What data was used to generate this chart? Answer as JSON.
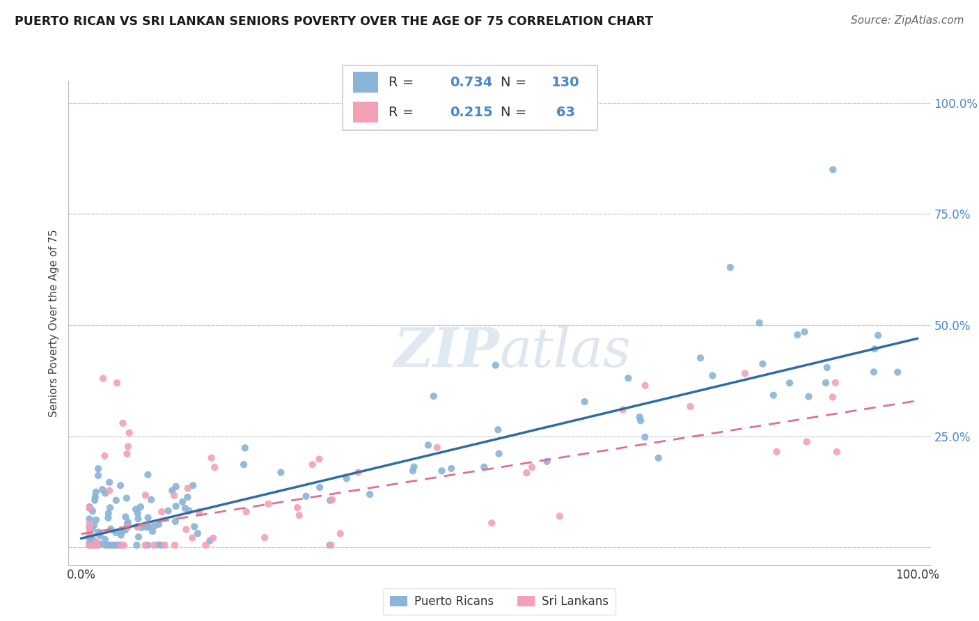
{
  "title": "PUERTO RICAN VS SRI LANKAN SENIORS POVERTY OVER THE AGE OF 75 CORRELATION CHART",
  "source": "Source: ZipAtlas.com",
  "ylabel": "Seniors Poverty Over the Age of 75",
  "blue_R": 0.734,
  "blue_N": 130,
  "pink_R": 0.215,
  "pink_N": 63,
  "blue_color": "#8ab4d8",
  "pink_color": "#f4a0b5",
  "blue_line_color": "#2e6da4",
  "pink_line_color": "#e07090",
  "legend_label_blue": "Puerto Ricans",
  "legend_label_pink": "Sri Lankans",
  "watermark": "ZIPatlas",
  "tick_color": "#4a86c8",
  "grid_color": "#cccccc",
  "title_color": "#1a1a1a",
  "source_color": "#666666"
}
